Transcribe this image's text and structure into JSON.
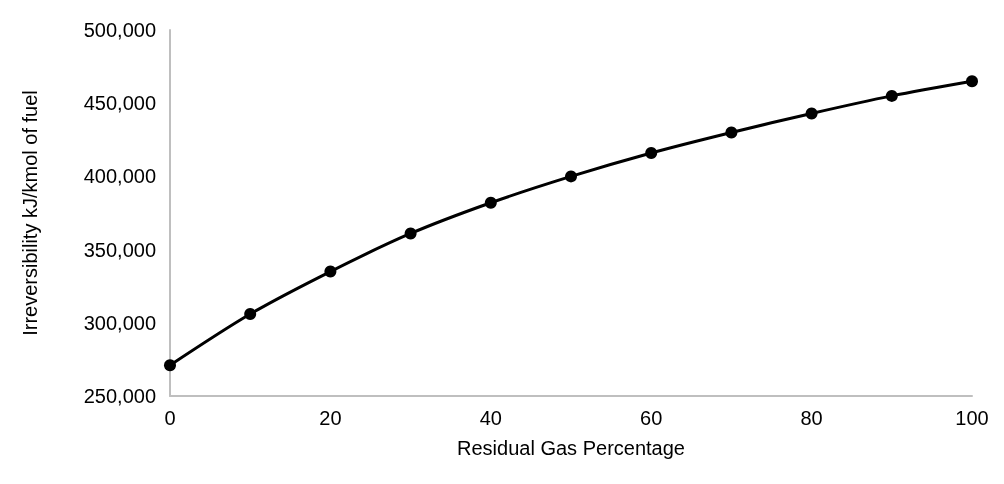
{
  "chart_data": {
    "type": "line",
    "xlabel": "Residual Gas Percentage",
    "ylabel": "Irreversibility kJ/kmol of fuel",
    "x": [
      0,
      10,
      20,
      30,
      40,
      50,
      60,
      70,
      80,
      90,
      100
    ],
    "series": [
      {
        "color": "#000000",
        "values": [
          271000,
          306000,
          335000,
          361000,
          382000,
          400000,
          416000,
          430000,
          443000,
          455000,
          465000
        ]
      }
    ],
    "xlim": [
      0,
      100
    ],
    "xticks": [
      0,
      20,
      40,
      60,
      80,
      100
    ],
    "ylim": [
      250000,
      500000
    ],
    "yticks": [
      {
        "value": 250000,
        "label": "250,000"
      },
      {
        "value": 300000,
        "label": "300,000"
      },
      {
        "value": 350000,
        "label": "350,000"
      },
      {
        "value": 400000,
        "label": "400,000"
      },
      {
        "value": 450000,
        "label": "450,000"
      },
      {
        "value": 500000,
        "label": "500,000"
      }
    ],
    "grid": false,
    "marker": "circle",
    "line_style": "solid"
  }
}
